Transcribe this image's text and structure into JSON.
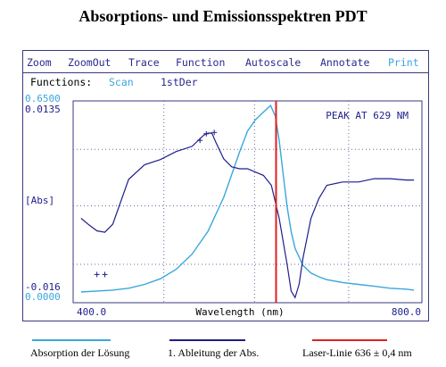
{
  "title": "Absorptions- und Emissionsspektren PDT",
  "menu": {
    "zoom": "Zoom",
    "zoomout": "ZoomOut",
    "trace": "Trace",
    "function": "Function",
    "autoscale": "Autoscale",
    "annotate": "Annotate",
    "print": "Print"
  },
  "functions": {
    "label": "Functions:",
    "scan": "Scan",
    "firstder": "1stDer"
  },
  "chart_data": {
    "type": "line",
    "xlabel": "Wavelength (nm)",
    "ylabel": "[Abs]",
    "annotation": "PEAK AT 629 NM",
    "xlim": [
      400,
      800
    ],
    "x_tick_labels": [
      "400.0",
      "800.0"
    ],
    "y_left_top": [
      "0.6500",
      "0.0135"
    ],
    "y_left_bottom": [
      "-0.016",
      "0.0000"
    ],
    "grid": true,
    "series": [
      {
        "name": "Absorption der Lösung",
        "color": "#3aa6dd",
        "x": [
          390,
          410,
          430,
          450,
          470,
          490,
          510,
          530,
          550,
          570,
          580,
          590,
          600,
          610,
          620,
          625,
          629,
          635,
          640,
          645,
          650,
          655,
          660,
          670,
          680,
          690,
          700,
          720,
          740,
          760,
          780,
          800,
          810
        ],
        "y": [
          0.0,
          0.005,
          0.01,
          0.02,
          0.04,
          0.07,
          0.12,
          0.2,
          0.32,
          0.5,
          0.62,
          0.74,
          0.85,
          0.91,
          0.95,
          0.97,
          0.985,
          0.93,
          0.8,
          0.62,
          0.45,
          0.32,
          0.23,
          0.14,
          0.1,
          0.08,
          0.065,
          0.05,
          0.04,
          0.03,
          0.02,
          0.015,
          0.01
        ]
      },
      {
        "name": "1. Ableitung der Abs.",
        "color": "#1e1e8c",
        "x": [
          390,
          400,
          410,
          420,
          430,
          450,
          470,
          490,
          510,
          530,
          545,
          550,
          555,
          560,
          570,
          580,
          590,
          600,
          610,
          620,
          630,
          640,
          650,
          655,
          660,
          665,
          670,
          680,
          690,
          700,
          720,
          740,
          760,
          780,
          800,
          810
        ],
        "y": [
          -0.004,
          -0.005,
          -0.006,
          -0.006,
          -0.005,
          0.002,
          0.004,
          0.005,
          0.006,
          0.007,
          0.0085,
          0.009,
          0.0088,
          0.0075,
          0.005,
          0.0038,
          0.0035,
          0.0035,
          0.003,
          0.0025,
          0.001,
          -0.004,
          -0.011,
          -0.015,
          -0.016,
          -0.014,
          -0.01,
          -0.004,
          -0.001,
          0.001,
          0.0015,
          0.0015,
          0.002,
          0.002,
          0.0018,
          0.0018
        ]
      }
    ],
    "marker": {
      "name": "Laser-Linie 636 ± 0,4 nm",
      "x": 636,
      "color": "#e02020"
    }
  },
  "legend": {
    "abs": "Absorption der Lösung",
    "der": "1. Ableitung  der Abs.",
    "laser": "Laser-Linie  636 ± 0,4 nm"
  }
}
